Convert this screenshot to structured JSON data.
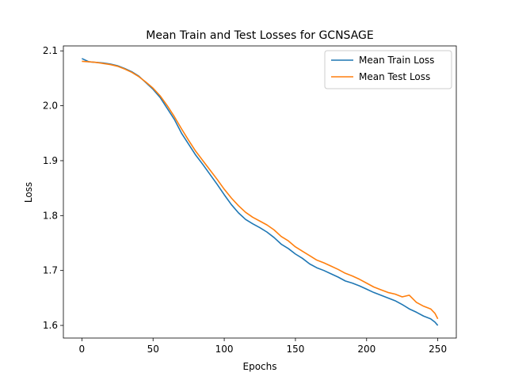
{
  "chart_data": {
    "type": "line",
    "title": "Mean Train and Test Losses for GCNSAGE",
    "xlabel": "Epochs",
    "ylabel": "Loss",
    "xlim": [
      -13,
      263
    ],
    "ylim": [
      1.577,
      2.109
    ],
    "xticks": [
      0,
      50,
      100,
      150,
      200,
      250
    ],
    "yticks": [
      1.6,
      1.7,
      1.8,
      1.9,
      2.0,
      2.1
    ],
    "yticks_labels": [
      "1.6",
      "1.7",
      "1.8",
      "1.9",
      "2.0",
      "2.1"
    ],
    "legend_position": "top-right",
    "grid": false,
    "colors": {
      "train": "#1f77b4",
      "test": "#ff7f0e"
    },
    "series": [
      {
        "name": "Mean Train Loss",
        "x": [
          0,
          5,
          10,
          15,
          20,
          25,
          30,
          35,
          40,
          45,
          50,
          55,
          60,
          65,
          70,
          75,
          80,
          85,
          90,
          95,
          100,
          105,
          110,
          115,
          120,
          125,
          130,
          135,
          140,
          145,
          150,
          155,
          160,
          165,
          170,
          175,
          180,
          185,
          190,
          195,
          200,
          205,
          210,
          215,
          220,
          225,
          230,
          235,
          240,
          245,
          248,
          250
        ],
        "y": [
          2.086,
          2.08,
          2.079,
          2.078,
          2.076,
          2.073,
          2.068,
          2.062,
          2.054,
          2.042,
          2.03,
          2.015,
          1.995,
          1.975,
          1.95,
          1.93,
          1.91,
          1.893,
          1.875,
          1.857,
          1.838,
          1.82,
          1.805,
          1.793,
          1.785,
          1.778,
          1.77,
          1.76,
          1.748,
          1.74,
          1.73,
          1.722,
          1.712,
          1.705,
          1.7,
          1.694,
          1.688,
          1.681,
          1.677,
          1.672,
          1.666,
          1.66,
          1.655,
          1.65,
          1.645,
          1.638,
          1.63,
          1.624,
          1.617,
          1.612,
          1.606,
          1.6
        ]
      },
      {
        "name": "Mean Test Loss",
        "x": [
          0,
          5,
          10,
          15,
          20,
          25,
          30,
          35,
          40,
          45,
          50,
          55,
          60,
          65,
          70,
          75,
          80,
          85,
          90,
          95,
          100,
          105,
          110,
          115,
          120,
          125,
          130,
          135,
          140,
          145,
          150,
          155,
          160,
          165,
          170,
          175,
          180,
          185,
          190,
          195,
          200,
          205,
          210,
          215,
          220,
          225,
          230,
          235,
          240,
          245,
          248,
          250
        ],
        "y": [
          2.081,
          2.08,
          2.079,
          2.077,
          2.075,
          2.072,
          2.067,
          2.061,
          2.053,
          2.043,
          2.032,
          2.018,
          2.0,
          1.98,
          1.958,
          1.937,
          1.917,
          1.9,
          1.883,
          1.866,
          1.848,
          1.832,
          1.818,
          1.806,
          1.797,
          1.79,
          1.783,
          1.774,
          1.762,
          1.754,
          1.743,
          1.735,
          1.727,
          1.719,
          1.714,
          1.708,
          1.702,
          1.695,
          1.69,
          1.684,
          1.677,
          1.67,
          1.665,
          1.66,
          1.657,
          1.652,
          1.655,
          1.642,
          1.635,
          1.63,
          1.622,
          1.612
        ]
      }
    ]
  }
}
